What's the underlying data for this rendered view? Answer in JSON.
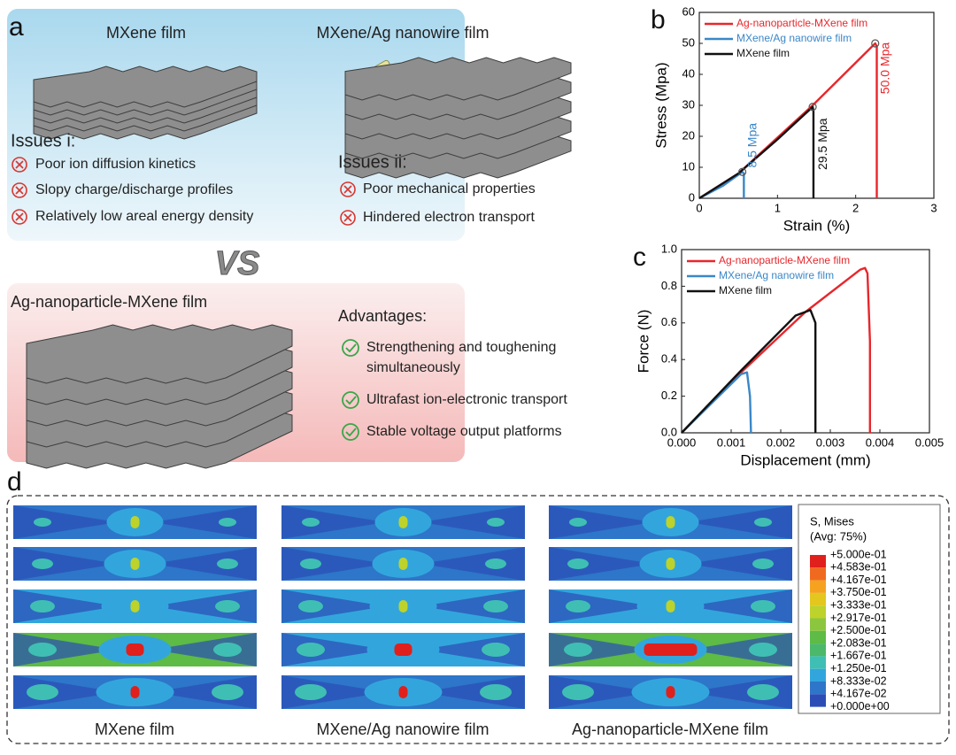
{
  "panel_a": {
    "label": "a",
    "top": {
      "left_title": "MXene film",
      "right_title": "MXene/Ag nanowire film",
      "issues_i": {
        "heading": "Issues i:",
        "items": [
          "Poor ion diffusion kinetics",
          "Slopy charge/discharge profiles",
          "Relatively low areal energy density"
        ]
      },
      "issues_ii": {
        "heading": "Issues ii:",
        "items": [
          "Poor mechanical properties",
          "Hindered electron transport"
        ]
      }
    },
    "vs": "VS",
    "bottom": {
      "title": "Ag-nanoparticle-MXene film",
      "advantages": {
        "heading": "Advantages:",
        "items": [
          [
            "Strengthening and toughening",
            "simultaneously"
          ],
          [
            "Ultrafast ion-electronic transport"
          ],
          [
            "Stable voltage output platforms"
          ]
        ]
      }
    }
  },
  "chart_data": [
    {
      "type": "line",
      "label": "b",
      "x_label": "Strain (%)",
      "y_label": "Stress (Mpa)",
      "xlim": [
        0,
        3
      ],
      "xticks": [
        0,
        1,
        2,
        3
      ],
      "ylim": [
        0,
        60
      ],
      "yticks": [
        0,
        10,
        20,
        30,
        40,
        50,
        60
      ],
      "series": [
        {
          "name": "Ag-nanoparticle-MXene film",
          "color": "#e8262b",
          "x": [
            0,
            0.5,
            1.45,
            2.25,
            2.27,
            2.27
          ],
          "values": [
            0,
            8,
            30,
            50,
            49,
            0
          ]
        },
        {
          "name": "MXene/Ag nanowire film",
          "color": "#3a87c8",
          "x": [
            0,
            0.3,
            0.55,
            0.57,
            0.57
          ],
          "values": [
            0,
            4,
            8.5,
            8,
            0
          ]
        },
        {
          "name": "MXene film",
          "color": "#111111",
          "x": [
            0,
            0.5,
            1.0,
            1.45,
            1.46,
            1.46
          ],
          "values": [
            0,
            8,
            19,
            29.5,
            28,
            0
          ]
        }
      ],
      "annotations": [
        {
          "text": "50.0 Mpa",
          "x": 2.25,
          "y": 50,
          "color": "#e8262b"
        },
        {
          "text": "8.5 Mpa",
          "x": 0.55,
          "y": 8.5,
          "color": "#3a87c8"
        },
        {
          "text": "29.5 Mpa",
          "x": 1.45,
          "y": 29.5,
          "color": "#111111"
        }
      ]
    },
    {
      "type": "line",
      "label": "c",
      "x_label": "Displacement (mm)",
      "y_label": "Force (N)",
      "xlim": [
        0,
        0.005
      ],
      "xticks": [
        {
          "value": 0,
          "label": "0.000"
        },
        {
          "value": 0.001,
          "label": "0.001"
        },
        {
          "value": 0.002,
          "label": "0.002"
        },
        {
          "value": 0.003,
          "label": "0.003"
        },
        {
          "value": 0.004,
          "label": "0.004"
        },
        {
          "value": 0.005,
          "label": "0.005"
        }
      ],
      "ylim": [
        0,
        1.0
      ],
      "yticks": [
        {
          "value": 0,
          "label": "0.0"
        },
        {
          "value": 0.2,
          "label": "0.2"
        },
        {
          "value": 0.4,
          "label": "0.4"
        },
        {
          "value": 0.6,
          "label": "0.6"
        },
        {
          "value": 0.8,
          "label": "0.8"
        },
        {
          "value": 1.0,
          "label": "1.0"
        }
      ],
      "series": [
        {
          "name": "Ag-nanoparticle-MXene film",
          "color": "#e8262b",
          "x": [
            0,
            0.0012,
            0.0025,
            0.0036,
            0.0037,
            0.00375,
            0.0038,
            0.0038
          ],
          "values": [
            0,
            0.33,
            0.66,
            0.89,
            0.9,
            0.87,
            0.5,
            0
          ]
        },
        {
          "name": "MXene/Ag nanowire film",
          "color": "#3a87c8",
          "x": [
            0,
            0.0012,
            0.00132,
            0.00138,
            0.0014
          ],
          "values": [
            0,
            0.32,
            0.33,
            0.2,
            0
          ]
        },
        {
          "name": "MXene film",
          "color": "#111111",
          "x": [
            0,
            0.0012,
            0.0023,
            0.0025,
            0.0026,
            0.0027,
            0.0027
          ],
          "values": [
            0,
            0.34,
            0.64,
            0.66,
            0.67,
            0.6,
            0
          ]
        }
      ]
    }
  ],
  "panel_d": {
    "label": "d",
    "columns": [
      "MXene film",
      "MXene/Ag nanowire film",
      "Ag-nanoparticle-MXene film"
    ],
    "legend": {
      "title": "S, Mises",
      "subtitle": "(Avg: 75%)",
      "labels": [
        "+5.000e-01",
        "+4.583e-01",
        "+4.167e-01",
        "+3.750e-01",
        "+3.333e-01",
        "+2.917e-01",
        "+2.500e-01",
        "+2.083e-01",
        "+1.667e-01",
        "+1.250e-01",
        "+8.333e-02",
        "+4.167e-02",
        "+0.000e+00"
      ],
      "colors": [
        "#e0201c",
        "#ef6a1f",
        "#f5a220",
        "#e3c71f",
        "#bdd22a",
        "#8cc63f",
        "#5dbb46",
        "#4cb86a",
        "#3fbfb3",
        "#32a6dc",
        "#2d76c9",
        "#2b4db5"
      ]
    }
  }
}
